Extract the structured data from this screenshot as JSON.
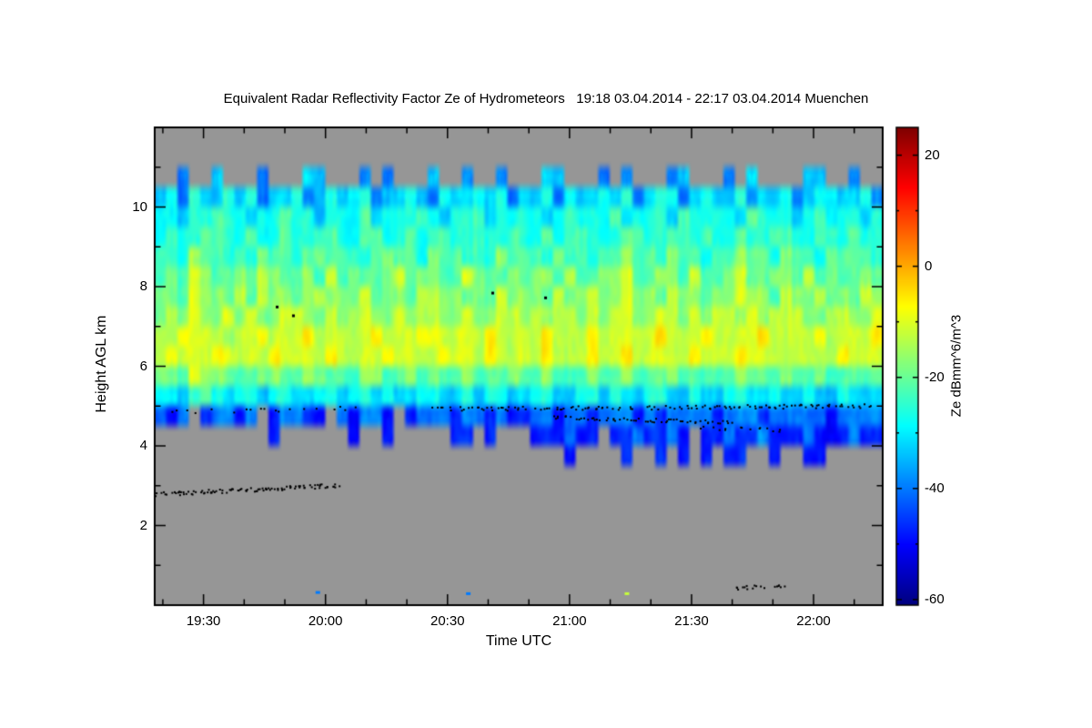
{
  "title": "Equivalent Radar Reflectivity Factor Ze of Hydrometeors   19:18 03.04.2014 - 22:17 03.04.2014 Muenchen",
  "chart_data": {
    "type": "heatmap",
    "xlabel": "Time UTC",
    "ylabel": "Height AGL km",
    "x_range_minutes": [
      1158,
      1337
    ],
    "x_ticks": [
      {
        "t": 1170,
        "label": "19:30"
      },
      {
        "t": 1200,
        "label": "20:00"
      },
      {
        "t": 1230,
        "label": "20:30"
      },
      {
        "t": 1260,
        "label": "21:00"
      },
      {
        "t": 1290,
        "label": "21:30"
      },
      {
        "t": 1320,
        "label": "22:00"
      }
    ],
    "x_minor_step_min": 10,
    "ylim_km": [
      0,
      12
    ],
    "y_ticks": [
      2,
      4,
      6,
      8,
      10
    ],
    "y_minor_step_km": 1,
    "no_data_color": "#969696",
    "colorbar": {
      "label": "Ze dBmm^6/m^3",
      "range": [
        -61,
        25
      ],
      "ticks": [
        20,
        0,
        -20,
        -40,
        -60
      ],
      "minor_step": 10,
      "colormap": "jet"
    },
    "grid": {
      "cols": 64,
      "t0_min": 1158,
      "t1_min": 1337,
      "h_top_km": 12,
      "h_bottom_km": 0,
      "value_map": {
        "1": -55,
        "2": -48,
        "3": -40,
        "4": -33,
        "5": -27,
        "6": -22,
        "7": -17,
        "8": -12,
        "9": -7
      },
      "rows_top_to_bottom": [
        "................................................................",
        "................................................................",
        "..3..4...3...44...3.3...4..3..3...44...3.3...34...3.4....44..3..",
        "4535445453445345455344543544545344535445453455345445344534554453",
        "5545565545565545556455565455645555456555645554655554655545655545",
        "5655665565565566556655656655655655656655566556656556556655665655",
        "6657665657665676665676657665657666576656676657665667665766576665",
        "6768766768766768676678677668766767768667786677686678667768676676",
        "7768776868776787778677688776768777687787787768776778776877877687",
        "7878778787788778788778788778778878788787887788787887878887788778",
        "8898887889888988888988899888898888988898888898889888898888988889",
        "8988898888988889888898888988898888988898898888898889888888889888",
        "7768776667766776667766767667666766766676676667666667666766766666",
        "5545654554554455455454455445455445544554544554454455445445445444",
        "323.23323.23322.32332.233323323223323323332323333233323333323333",
        "..........2......2..2.....22.2...222322.2232232.2232232223222322",
        "....................................2....2..2.2.2.22..2..22.....",
        "................................................................",
        "................................................................",
        "................................................................",
        "................................................................",
        "................................................................",
        "................................................................",
        "................................................................"
      ]
    },
    "specks": [
      {
        "t": 1198,
        "h": 0.33,
        "v": -40
      },
      {
        "t": 1235,
        "h": 0.3,
        "v": -40
      },
      {
        "t": 1274,
        "h": 0.3,
        "v": -12
      }
    ],
    "point_targets": {
      "color": "#000000",
      "segments": [
        {
          "t0": 1158,
          "t1": 1203,
          "h0": 2.78,
          "h1": 3.0,
          "n": 120
        },
        {
          "t0": 1162,
          "t1": 1207,
          "h0": 4.85,
          "h1": 4.95,
          "n": 28
        },
        {
          "t0": 1226,
          "t1": 1334,
          "h0": 4.92,
          "h1": 5.0,
          "n": 150
        },
        {
          "t0": 1255,
          "t1": 1300,
          "h0": 4.72,
          "h1": 4.58,
          "n": 70
        },
        {
          "t0": 1292,
          "t1": 1312,
          "h0": 4.45,
          "h1": 4.4,
          "n": 18
        },
        {
          "t0": 1301,
          "t1": 1313,
          "h0": 0.42,
          "h1": 0.5,
          "n": 22
        }
      ],
      "dots": [
        [
          1188,
          7.5
        ],
        [
          1192,
          7.28
        ],
        [
          1241,
          7.85
        ],
        [
          1254,
          7.73
        ]
      ]
    }
  }
}
